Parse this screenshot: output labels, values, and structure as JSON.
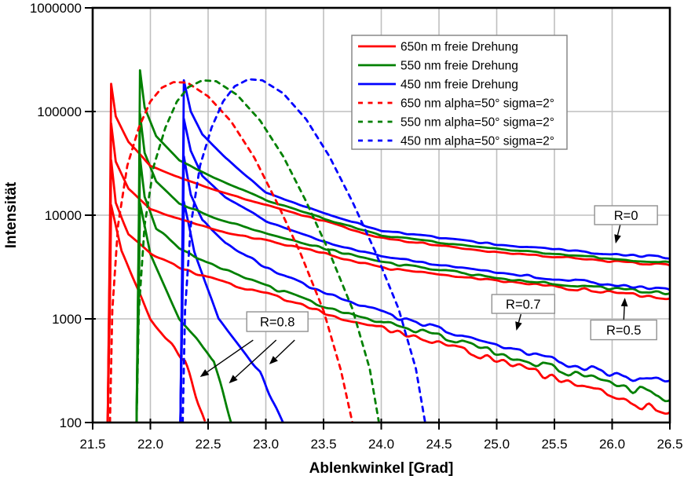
{
  "chart_data": {
    "type": "line",
    "title": "",
    "xlabel": "Ablenkwinkel [Grad]",
    "ylabel": "Intensität",
    "x_range": [
      21.5,
      26.5
    ],
    "x_tick_step": 0.5,
    "x_tick_labels": [
      "21.5",
      "22.0",
      "22.5",
      "23.0",
      "23.5",
      "24.0",
      "24.5",
      "25.0",
      "25.5",
      "26.0",
      "26.5"
    ],
    "y_scale": "log",
    "y_range": [
      100,
      1000000
    ],
    "y_tick_labels": [
      "100",
      "1000",
      "10000",
      "100000",
      "1000000"
    ],
    "grid": "major-on",
    "colors": {
      "red650": "#ff0000",
      "green550": "#008000",
      "blue450": "#0000ff"
    },
    "legend": {
      "position": "top-center-inside",
      "entries": [
        {
          "label": "650n m freie Drehung",
          "color": "#ff0000",
          "style": "solid"
        },
        {
          "label": "550 nm freie Drehung",
          "color": "#008000",
          "style": "solid"
        },
        {
          "label": "450 nm freie Drehung",
          "color": "#0000ff",
          "style": "solid"
        },
        {
          "label": "650 nm alpha=50° sigma=2°",
          "color": "#ff0000",
          "style": "dashed"
        },
        {
          "label": "550 nm alpha=50° sigma=2°",
          "color": "#008000",
          "style": "dashed"
        },
        {
          "label": "450 nm alpha=50° sigma=2°",
          "color": "#0000ff",
          "style": "dashed"
        }
      ]
    },
    "annotations": [
      {
        "text": "R=0",
        "box_center": [
          26.12,
          10000
        ],
        "box_size": [
          80,
          24
        ],
        "arrows": [
          {
            "from": [
              26.07,
              8100
            ],
            "to": [
              26.03,
              5330
            ]
          }
        ]
      },
      {
        "text": "R=0.5",
        "box_center": [
          26.1,
          783
        ],
        "box_size": [
          84,
          25
        ],
        "arrows": [
          {
            "from": [
              26.1,
              950
            ],
            "to": [
              26.11,
              1600
            ]
          }
        ]
      },
      {
        "text": "R=0.7",
        "box_center": [
          25.23,
          1393
        ],
        "box_size": [
          80,
          24
        ],
        "arrows": [
          {
            "from": [
              25.21,
              1110
            ],
            "to": [
              25.17,
              770
            ]
          }
        ]
      },
      {
        "text": "R=0.8",
        "box_center": [
          23.1,
          940
        ],
        "box_size": [
          78,
          25
        ],
        "arrows": [
          {
            "from": [
              22.89,
              624
            ],
            "to": [
              22.43,
              275
            ]
          },
          {
            "from": [
              23.09,
              624
            ],
            "to": [
              22.68,
              239
            ]
          },
          {
            "from": [
              23.25,
              624
            ],
            "to": [
              23.03,
              364
            ]
          }
        ]
      }
    ],
    "series": [
      {
        "id": "650nm-R0-frei",
        "group": "R=0",
        "color": "#ff0000",
        "style": "solid",
        "noise": 0.012,
        "seed": 11,
        "points": [
          [
            21.63,
            100
          ],
          [
            21.65,
            8000
          ],
          [
            21.66,
            185000
          ],
          [
            21.7,
            90000
          ],
          [
            21.81,
            51000
          ],
          [
            22.0,
            30000
          ],
          [
            22.3,
            22000
          ],
          [
            22.6,
            17000
          ],
          [
            23.0,
            12500
          ],
          [
            23.5,
            8800
          ],
          [
            24.0,
            6000
          ],
          [
            25.0,
            4400
          ],
          [
            26.0,
            3600
          ],
          [
            26.5,
            3300
          ]
        ]
      },
      {
        "id": "550nm-R0-frei",
        "group": "R=0",
        "color": "#008000",
        "style": "solid",
        "noise": 0.012,
        "seed": 12,
        "points": [
          [
            21.88,
            100
          ],
          [
            21.9,
            9000
          ],
          [
            21.91,
            250000
          ],
          [
            21.95,
            110000
          ],
          [
            22.05,
            58000
          ],
          [
            22.25,
            34000
          ],
          [
            22.55,
            23000
          ],
          [
            23.0,
            14000
          ],
          [
            23.5,
            9300
          ],
          [
            24.0,
            6400
          ],
          [
            25.0,
            4700
          ],
          [
            26.0,
            3800
          ],
          [
            26.5,
            3500
          ]
        ]
      },
      {
        "id": "450nm-R0-frei",
        "group": "R=0",
        "color": "#0000ff",
        "style": "solid",
        "noise": 0.012,
        "seed": 13,
        "points": [
          [
            22.26,
            100
          ],
          [
            22.28,
            10000
          ],
          [
            22.29,
            200000
          ],
          [
            22.35,
            100000
          ],
          [
            22.45,
            60000
          ],
          [
            22.65,
            36000
          ],
          [
            23.0,
            16500
          ],
          [
            23.5,
            10500
          ],
          [
            24.0,
            7100
          ],
          [
            25.0,
            5200
          ],
          [
            26.0,
            4200
          ],
          [
            26.5,
            3900
          ]
        ]
      },
      {
        "id": "650nm-R05-frei",
        "group": "R=0.5",
        "color": "#ff0000",
        "style": "solid",
        "noise": 0.018,
        "seed": 21,
        "points": [
          [
            21.63,
            100
          ],
          [
            21.65,
            5000
          ],
          [
            21.66,
            77000
          ],
          [
            21.7,
            33000
          ],
          [
            21.81,
            18000
          ],
          [
            22.0,
            11500
          ],
          [
            22.3,
            8800
          ],
          [
            22.6,
            7000
          ],
          [
            23.0,
            5700
          ],
          [
            23.5,
            4300
          ],
          [
            24.0,
            3100
          ],
          [
            25.0,
            2300
          ],
          [
            26.0,
            1800
          ],
          [
            26.5,
            1580
          ]
        ]
      },
      {
        "id": "550nm-R05-frei",
        "group": "R=0.5",
        "color": "#008000",
        "style": "solid",
        "noise": 0.018,
        "seed": 22,
        "points": [
          [
            21.88,
            100
          ],
          [
            21.9,
            6000
          ],
          [
            21.91,
            95000
          ],
          [
            21.95,
            40000
          ],
          [
            22.05,
            21000
          ],
          [
            22.25,
            13000
          ],
          [
            22.55,
            9500
          ],
          [
            23.0,
            6700
          ],
          [
            23.5,
            4800
          ],
          [
            24.0,
            3500
          ],
          [
            25.0,
            2500
          ],
          [
            26.0,
            1950
          ],
          [
            26.5,
            1750
          ]
        ]
      },
      {
        "id": "450nm-R05-frei",
        "group": "R=0.5",
        "color": "#0000ff",
        "style": "solid",
        "noise": 0.018,
        "seed": 23,
        "points": [
          [
            22.26,
            100
          ],
          [
            22.28,
            7000
          ],
          [
            22.29,
            85000
          ],
          [
            22.35,
            42000
          ],
          [
            22.45,
            24000
          ],
          [
            22.65,
            15000
          ],
          [
            23.0,
            8800
          ],
          [
            23.5,
            5600
          ],
          [
            24.0,
            4000
          ],
          [
            25.0,
            2800
          ],
          [
            26.0,
            2150
          ],
          [
            26.5,
            1950
          ]
        ]
      },
      {
        "id": "650nm-R07-frei",
        "group": "R=0.7",
        "color": "#ff0000",
        "style": "solid",
        "noise": 0.045,
        "seed": 31,
        "points": [
          [
            21.63,
            100
          ],
          [
            21.65,
            3000
          ],
          [
            21.66,
            34000
          ],
          [
            21.7,
            13000
          ],
          [
            21.81,
            6500
          ],
          [
            22.0,
            4200
          ],
          [
            22.3,
            3000
          ],
          [
            22.6,
            2300
          ],
          [
            23.0,
            1750
          ],
          [
            23.5,
            1150
          ],
          [
            24.0,
            820
          ],
          [
            24.5,
            580
          ],
          [
            25.0,
            400
          ],
          [
            25.5,
            270
          ],
          [
            26.0,
            180
          ],
          [
            26.5,
            120
          ]
        ]
      },
      {
        "id": "550nm-R07-frei",
        "group": "R=0.7",
        "color": "#008000",
        "style": "solid",
        "noise": 0.045,
        "seed": 32,
        "points": [
          [
            21.88,
            100
          ],
          [
            21.9,
            3500
          ],
          [
            21.91,
            36000
          ],
          [
            21.95,
            15000
          ],
          [
            22.05,
            7500
          ],
          [
            22.25,
            4800
          ],
          [
            22.55,
            3300
          ],
          [
            23.0,
            2100
          ],
          [
            23.5,
            1350
          ],
          [
            24.0,
            950
          ],
          [
            24.5,
            680
          ],
          [
            25.0,
            480
          ],
          [
            25.5,
            330
          ],
          [
            26.0,
            240
          ],
          [
            26.5,
            170
          ]
        ]
      },
      {
        "id": "450nm-R07-frei",
        "group": "R=0.7",
        "color": "#0000ff",
        "style": "solid",
        "noise": 0.045,
        "seed": 33,
        "points": [
          [
            22.26,
            100
          ],
          [
            22.28,
            4000
          ],
          [
            22.29,
            37000
          ],
          [
            22.35,
            16000
          ],
          [
            22.45,
            9000
          ],
          [
            22.65,
            5500
          ],
          [
            23.0,
            3100
          ],
          [
            23.5,
            1800
          ],
          [
            24.0,
            1150
          ],
          [
            24.5,
            800
          ],
          [
            25.0,
            560
          ],
          [
            25.5,
            400
          ],
          [
            26.0,
            300
          ],
          [
            26.5,
            240
          ]
        ]
      },
      {
        "id": "650nm-R08-frei",
        "group": "R=0.8",
        "color": "#ff0000",
        "style": "solid",
        "noise": 0.025,
        "seed": 41,
        "points": [
          [
            21.63,
            100
          ],
          [
            21.65,
            1500
          ],
          [
            21.66,
            12500
          ],
          [
            21.75,
            4500
          ],
          [
            22.0,
            1000
          ],
          [
            22.3,
            390
          ],
          [
            22.47,
            100
          ]
        ]
      },
      {
        "id": "550nm-R08-frei",
        "group": "R=0.8",
        "color": "#008000",
        "style": "solid",
        "noise": 0.025,
        "seed": 42,
        "points": [
          [
            21.88,
            100
          ],
          [
            21.9,
            1800
          ],
          [
            21.91,
            13000
          ],
          [
            22.0,
            4200
          ],
          [
            22.25,
            1000
          ],
          [
            22.55,
            390
          ],
          [
            22.7,
            100
          ]
        ]
      },
      {
        "id": "450nm-R08-frei",
        "group": "R=0.8",
        "color": "#0000ff",
        "style": "solid",
        "noise": 0.025,
        "seed": 43,
        "points": [
          [
            22.26,
            100
          ],
          [
            22.28,
            2000
          ],
          [
            22.29,
            13500
          ],
          [
            22.38,
            4500
          ],
          [
            22.59,
            1000
          ],
          [
            22.95,
            300
          ],
          [
            23.15,
            100
          ]
        ]
      },
      {
        "id": "650nm-alpha50-sigma2",
        "group": "alpha=50 sigma=2",
        "color": "#ff0000",
        "style": "dashed",
        "noise": 0,
        "seed": 51,
        "points": [
          [
            21.65,
            100
          ],
          [
            21.67,
            1200
          ],
          [
            21.72,
            8000
          ],
          [
            21.8,
            30000
          ],
          [
            21.9,
            70000
          ],
          [
            22.0,
            125000
          ],
          [
            22.1,
            170000
          ],
          [
            22.2,
            192000
          ],
          [
            22.32,
            190000
          ],
          [
            22.5,
            140000
          ],
          [
            22.7,
            80000
          ],
          [
            22.9,
            36000
          ],
          [
            23.1,
            13000
          ],
          [
            23.3,
            4300
          ],
          [
            23.5,
            1200
          ],
          [
            23.65,
            320
          ],
          [
            23.75,
            100
          ]
        ]
      },
      {
        "id": "550nm-alpha50-sigma2",
        "group": "alpha=50 sigma=2",
        "color": "#008000",
        "style": "dashed",
        "noise": 0,
        "seed": 52,
        "points": [
          [
            21.88,
            100
          ],
          [
            21.9,
            1200
          ],
          [
            21.95,
            8000
          ],
          [
            22.03,
            30000
          ],
          [
            22.13,
            70000
          ],
          [
            22.23,
            125000
          ],
          [
            22.33,
            172000
          ],
          [
            22.45,
            200000
          ],
          [
            22.57,
            196000
          ],
          [
            22.75,
            145000
          ],
          [
            22.95,
            82000
          ],
          [
            23.15,
            37000
          ],
          [
            23.35,
            13500
          ],
          [
            23.55,
            4400
          ],
          [
            23.75,
            1250
          ],
          [
            23.9,
            330
          ],
          [
            23.98,
            100
          ]
        ]
      },
      {
        "id": "450nm-alpha50-sigma2",
        "group": "alpha=50 sigma=2",
        "color": "#0000ff",
        "style": "dashed",
        "noise": 0,
        "seed": 53,
        "points": [
          [
            22.28,
            100
          ],
          [
            22.3,
            1200
          ],
          [
            22.35,
            8000
          ],
          [
            22.43,
            30000
          ],
          [
            22.53,
            70000
          ],
          [
            22.63,
            125000
          ],
          [
            22.73,
            175000
          ],
          [
            22.85,
            205000
          ],
          [
            22.97,
            200000
          ],
          [
            23.15,
            150000
          ],
          [
            23.35,
            84000
          ],
          [
            23.55,
            37000
          ],
          [
            23.75,
            13500
          ],
          [
            23.95,
            4400
          ],
          [
            24.15,
            1250
          ],
          [
            24.3,
            330
          ],
          [
            24.38,
            100
          ]
        ]
      }
    ]
  }
}
